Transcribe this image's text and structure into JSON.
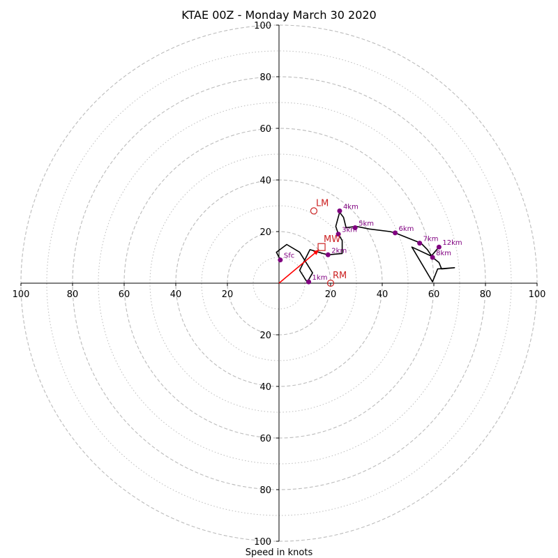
{
  "chart_data": {
    "type": "hodograph",
    "title": "KTAE 00Z - Monday March 30 2020",
    "xlabel": "Speed in knots",
    "units": "knots",
    "xlim": [
      -100,
      100
    ],
    "ylim": [
      -100,
      100
    ],
    "ring_major": [
      20,
      40,
      60,
      80,
      100
    ],
    "ring_minor": [
      10,
      30,
      50,
      70,
      90
    ],
    "x_ticks": [
      {
        "v": -100,
        "label": "100"
      },
      {
        "v": -80,
        "label": "80"
      },
      {
        "v": -60,
        "label": "60"
      },
      {
        "v": -40,
        "label": "40"
      },
      {
        "v": -20,
        "label": "20"
      },
      {
        "v": 20,
        "label": "20"
      },
      {
        "v": 40,
        "label": "40"
      },
      {
        "v": 60,
        "label": "60"
      },
      {
        "v": 80,
        "label": "80"
      },
      {
        "v": 100,
        "label": "100"
      }
    ],
    "y_ticks": [
      {
        "v": 100,
        "label": "100"
      },
      {
        "v": 80,
        "label": "80"
      },
      {
        "v": 60,
        "label": "60"
      },
      {
        "v": 40,
        "label": "40"
      },
      {
        "v": 20,
        "label": "20"
      },
      {
        "v": -20,
        "label": "20"
      },
      {
        "v": -40,
        "label": "40"
      },
      {
        "v": -60,
        "label": "60"
      },
      {
        "v": -80,
        "label": "80"
      },
      {
        "v": -100,
        "label": "100"
      }
    ],
    "trace": [
      [
        0.5,
        9
      ],
      [
        -1,
        12
      ],
      [
        3,
        15
      ],
      [
        8,
        12
      ],
      [
        13,
        4
      ],
      [
        11,
        0.5
      ],
      [
        10.5,
        1
      ],
      [
        8,
        5
      ],
      [
        12,
        13
      ],
      [
        17,
        11.5
      ],
      [
        19,
        11
      ],
      [
        24.5,
        11.5
      ],
      [
        24.5,
        16.5
      ],
      [
        23,
        19
      ],
      [
        22,
        22
      ],
      [
        23.5,
        27.5
      ],
      [
        25,
        25.5
      ],
      [
        26,
        21.5
      ],
      [
        30,
        22
      ],
      [
        35,
        21
      ],
      [
        43,
        20
      ],
      [
        45,
        19.5
      ],
      [
        55,
        15.5
      ],
      [
        57.5,
        13
      ],
      [
        59.5,
        10
      ],
      [
        62,
        8
      ],
      [
        63,
        5.5
      ],
      [
        68,
        6
      ],
      [
        61.5,
        5.5
      ],
      [
        59.5,
        0.5
      ],
      [
        51.5,
        14
      ],
      [
        59,
        10.5
      ],
      [
        62,
        14
      ]
    ],
    "height_markers": [
      {
        "label": "Sfc",
        "u": 0.5,
        "v": 9
      },
      {
        "label": "1km",
        "u": 11.5,
        "v": 0.5
      },
      {
        "label": "2km",
        "u": 19,
        "v": 11
      },
      {
        "label": "3km",
        "u": 23,
        "v": 19
      },
      {
        "label": "4km",
        "u": 23.5,
        "v": 28
      },
      {
        "label": "5km",
        "u": 29.5,
        "v": 21.5
      },
      {
        "label": "6km",
        "u": 45,
        "v": 19.5
      },
      {
        "label": "7km",
        "u": 54.5,
        "v": 15.5
      },
      {
        "label": "8km",
        "u": 59.5,
        "v": 10
      },
      {
        "label": "12km",
        "u": 62,
        "v": 14
      }
    ],
    "storm_motion": [
      {
        "label": "LM",
        "u": 13.5,
        "v": 28,
        "marker": "circle"
      },
      {
        "label": "MW",
        "u": 16.5,
        "v": 14,
        "marker": "square"
      },
      {
        "label": "RM",
        "u": 20,
        "v": 0,
        "marker": "circle"
      }
    ],
    "shear_vector": {
      "from": [
        0,
        0
      ],
      "to": [
        15.5,
        13
      ]
    },
    "colors": {
      "trace": "#000000",
      "height_marker": "#800080",
      "storm_motion": "#cc2222",
      "shear_vector": "#ff0000",
      "grid": "#bbbbbb"
    }
  }
}
